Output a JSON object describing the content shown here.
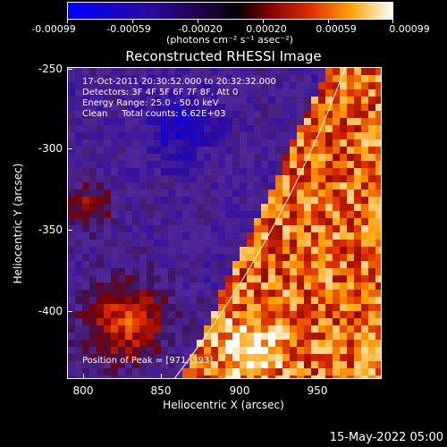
{
  "colorbar": {
    "labels": [
      "-0.00099",
      "-0.00059",
      "-0.00020",
      "0.00020",
      "0.00059",
      "0.00099"
    ],
    "unit": "(photons cm⁻² s⁻¹ asec⁻²)"
  },
  "title": "Reconstructed RHESSI Image",
  "info": {
    "line1": "17-Oct-2011 20:30:52.000 to 20:32:32.000",
    "line2": "Detectors: 3F 4F 5F 6F 7F 8F, Att 0",
    "line3": "Energy Range: 25.0 - 50.0 keV",
    "line4": "Clean     Total counts: 6.62E+03"
  },
  "peak": "Position of Peak = [971,-393]",
  "axes": {
    "x_title": "Heliocentric X (arcsec)",
    "y_title": "Heliocentric Y (arcsec)",
    "x_ticks": [
      "800",
      "850",
      "900",
      "950"
    ],
    "y_ticks": [
      "-250",
      "-300",
      "-350",
      "-400"
    ]
  },
  "footer_date": "15-May-2022 05:00",
  "colors": {
    "background": "#000000",
    "limb": "#ffffff"
  }
}
